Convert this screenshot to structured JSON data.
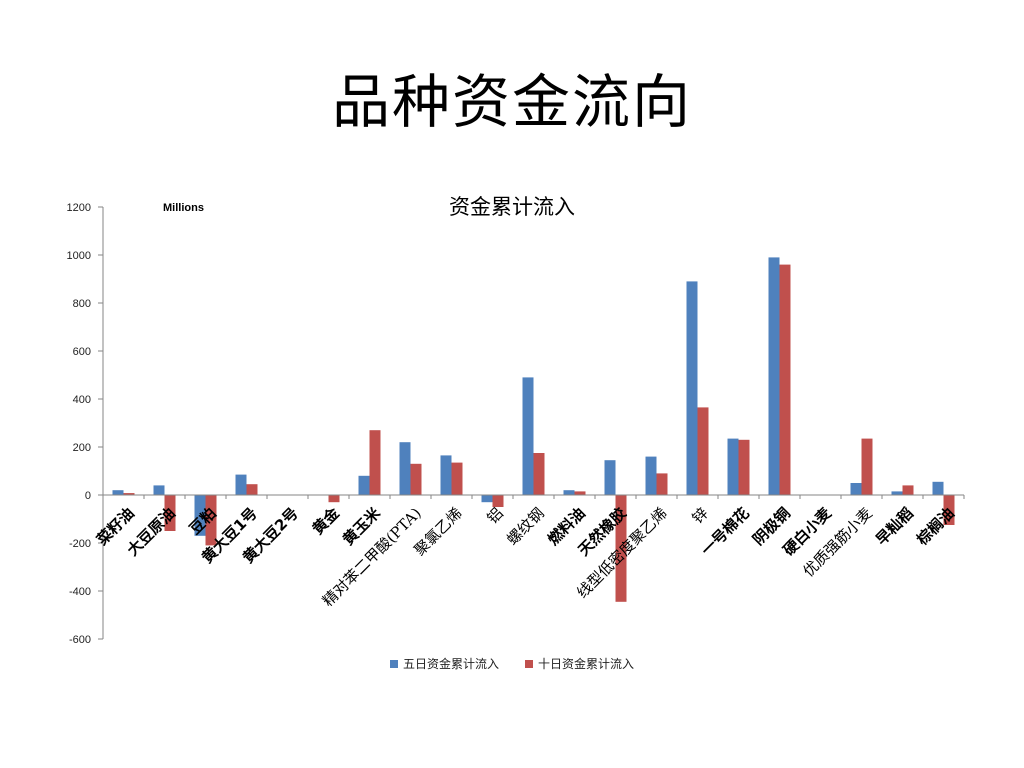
{
  "slide": {
    "title": "品种资金流向"
  },
  "chart_data": {
    "type": "bar",
    "title": "资金累计流入",
    "unit_label": "Millions",
    "ylim": [
      -600,
      1200
    ],
    "yticks": [
      -600,
      -400,
      -200,
      0,
      200,
      400,
      600,
      800,
      1000,
      1200
    ],
    "grid": false,
    "legend_position": "bottom",
    "categories": [
      "菜籽油",
      "大豆原油",
      "豆粕",
      "黄大豆1号",
      "黄大豆2号",
      "黄金",
      "黄玉米",
      "精对苯二甲酸(PTA)",
      "聚氯乙烯",
      "铝",
      "螺纹钢",
      "燃料油",
      "天然橡胶",
      "线型低密度聚乙烯",
      "锌",
      "一号棉花",
      "阴极铜",
      "硬白小麦",
      "优质强筋小麦",
      "早籼稻",
      "棕榈油"
    ],
    "series": [
      {
        "name": "五日资金累计流入",
        "color": "#4F81BD",
        "values": [
          20,
          40,
          -170,
          85,
          0,
          0,
          80,
          220,
          165,
          -30,
          490,
          20,
          145,
          160,
          890,
          235,
          990,
          0,
          50,
          15,
          55
        ]
      },
      {
        "name": "十日资金累计流入",
        "color": "#C0504D",
        "values": [
          8,
          -150,
          -210,
          45,
          0,
          -30,
          270,
          130,
          135,
          -50,
          175,
          15,
          -445,
          90,
          365,
          230,
          960,
          0,
          235,
          40,
          -125
        ]
      }
    ]
  }
}
